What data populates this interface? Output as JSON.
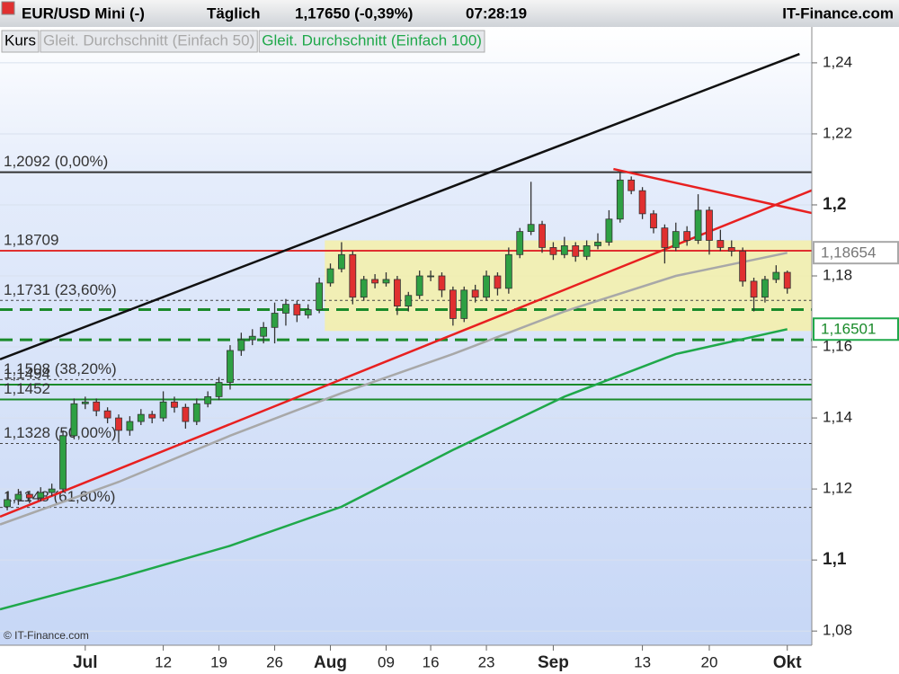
{
  "header": {
    "title": "EUR/USD Mini (-)",
    "interval": "Täglich",
    "price": "1,17650 (-0,39%)",
    "time": "07:28:19",
    "brand": "IT-Finance.com"
  },
  "chart_data": {
    "type": "candlestick",
    "up_color": "#2ea043",
    "down_color": "#e03030",
    "open": [
      1.115,
      1.117,
      1.1185,
      1.1175,
      1.119,
      1.12,
      1.135,
      1.144,
      1.1445,
      1.142,
      1.14,
      1.1365,
      1.139,
      1.141,
      1.14,
      1.1445,
      1.143,
      1.139,
      1.144,
      1.146,
      1.15,
      1.159,
      1.162,
      1.163,
      1.1655,
      1.1695,
      1.172,
      1.169,
      1.1705,
      1.178,
      1.182,
      1.186,
      1.174,
      1.179,
      1.178,
      1.179,
      1.1715,
      1.1745,
      1.18,
      1.18,
      1.176,
      1.168,
      1.176,
      1.174,
      1.18,
      1.1765,
      1.186,
      1.1925,
      1.1945,
      1.188,
      1.186,
      1.1885,
      1.1855,
      1.1885,
      1.1895,
      1.196,
      1.207,
      1.204,
      1.1975,
      1.1935,
      1.188,
      1.1925,
      1.19,
      1.1985,
      1.19,
      1.188,
      1.187,
      1.1785,
      1.174,
      1.179,
      1.181
    ],
    "high": [
      1.119,
      1.12,
      1.1195,
      1.1205,
      1.1215,
      1.1365,
      1.1455,
      1.146,
      1.1455,
      1.143,
      1.141,
      1.1405,
      1.1425,
      1.142,
      1.1475,
      1.146,
      1.144,
      1.1455,
      1.1475,
      1.1515,
      1.1605,
      1.164,
      1.165,
      1.167,
      1.1725,
      1.1735,
      1.173,
      1.172,
      1.1795,
      1.1835,
      1.1895,
      1.187,
      1.18,
      1.1805,
      1.181,
      1.18,
      1.1755,
      1.1815,
      1.1815,
      1.181,
      1.177,
      1.177,
      1.1775,
      1.1815,
      1.181,
      1.188,
      1.1935,
      1.2065,
      1.1955,
      1.1895,
      1.191,
      1.1895,
      1.19,
      1.192,
      1.1985,
      1.209,
      1.208,
      1.205,
      1.1985,
      1.1945,
      1.195,
      1.194,
      1.203,
      1.1995,
      1.193,
      1.19,
      1.188,
      1.1795,
      1.18,
      1.183,
      1.1815
    ],
    "low": [
      1.114,
      1.1155,
      1.116,
      1.1165,
      1.118,
      1.119,
      1.134,
      1.1425,
      1.1405,
      1.1385,
      1.133,
      1.135,
      1.138,
      1.1385,
      1.139,
      1.1415,
      1.137,
      1.138,
      1.143,
      1.145,
      1.148,
      1.1575,
      1.1605,
      1.161,
      1.161,
      1.166,
      1.167,
      1.168,
      1.1695,
      1.177,
      1.181,
      1.172,
      1.173,
      1.1765,
      1.177,
      1.169,
      1.17,
      1.1735,
      1.1785,
      1.174,
      1.166,
      1.167,
      1.1725,
      1.173,
      1.1745,
      1.175,
      1.185,
      1.1915,
      1.1865,
      1.1845,
      1.185,
      1.184,
      1.1845,
      1.1875,
      1.1885,
      1.195,
      1.203,
      1.196,
      1.192,
      1.1835,
      1.187,
      1.1885,
      1.189,
      1.186,
      1.187,
      1.1855,
      1.177,
      1.17,
      1.1725,
      1.178,
      1.175
    ],
    "close": [
      1.117,
      1.1185,
      1.1175,
      1.119,
      1.12,
      1.135,
      1.144,
      1.1445,
      1.142,
      1.14,
      1.1365,
      1.139,
      1.141,
      1.14,
      1.1445,
      1.143,
      1.139,
      1.144,
      1.146,
      1.15,
      1.159,
      1.162,
      1.163,
      1.1655,
      1.1695,
      1.172,
      1.169,
      1.1705,
      1.178,
      1.182,
      1.186,
      1.174,
      1.179,
      1.178,
      1.179,
      1.1715,
      1.1745,
      1.18,
      1.18,
      1.176,
      1.168,
      1.176,
      1.174,
      1.18,
      1.1765,
      1.186,
      1.1925,
      1.1945,
      1.188,
      1.186,
      1.1885,
      1.1855,
      1.1885,
      1.1895,
      1.196,
      1.207,
      1.204,
      1.1975,
      1.1935,
      1.188,
      1.1925,
      1.19,
      1.1985,
      1.19,
      1.188,
      1.187,
      1.1785,
      1.174,
      1.179,
      1.181,
      1.1765
    ],
    "xlim": [
      -0.65,
      72.2
    ],
    "ylim": [
      1.076,
      1.2501
    ],
    "grid": true,
    "xticks": [
      {
        "value": 7,
        "label": "Jul",
        "bold": true
      },
      {
        "value": 14,
        "label": "12"
      },
      {
        "value": 19,
        "label": "19"
      },
      {
        "value": 24,
        "label": "26"
      },
      {
        "value": 29,
        "label": "Aug",
        "bold": true
      },
      {
        "value": 34,
        "label": "09"
      },
      {
        "value": 38,
        "label": "16"
      },
      {
        "value": 43,
        "label": "23"
      },
      {
        "value": 49,
        "label": "Sep",
        "bold": true
      },
      {
        "value": 57,
        "label": "13"
      },
      {
        "value": 63,
        "label": "20"
      },
      {
        "value": 70,
        "label": "Okt",
        "bold": true
      }
    ],
    "yticks": [
      {
        "value": 1.08,
        "label": "1,08"
      },
      {
        "value": 1.1,
        "label": "1,1",
        "bold": true
      },
      {
        "value": 1.12,
        "label": "1,12"
      },
      {
        "value": 1.14,
        "label": "1,14"
      },
      {
        "value": 1.16,
        "label": "1,16"
      },
      {
        "value": 1.18,
        "label": "1,18"
      },
      {
        "value": 1.2,
        "label": "1,2",
        "bold": true
      },
      {
        "value": 1.22,
        "label": "1,22"
      },
      {
        "value": 1.24,
        "label": "1,24"
      }
    ],
    "series": [
      {
        "name": "Kurs",
        "color": "#000000"
      },
      {
        "name": "Gleit. Durchschnitt (Einfach 50)",
        "color": "#a8a8a8",
        "x": [
          -0.65,
          10,
          20,
          30,
          40,
          50,
          60,
          70
        ],
        "values": [
          1.11,
          1.122,
          1.135,
          1.147,
          1.158,
          1.17,
          1.18,
          1.1865
        ]
      },
      {
        "name": "Gleit. Durchschnitt (Einfach 100)",
        "color": "#1fa84a",
        "x": [
          -0.65,
          10,
          20,
          30,
          40,
          50,
          60,
          70
        ],
        "values": [
          1.0861,
          1.095,
          1.104,
          1.115,
          1.131,
          1.146,
          1.158,
          1.165
        ]
      }
    ],
    "price_tags": [
      {
        "value": 1.18654,
        "label": "1,18654",
        "color": "#a8a8a8"
      },
      {
        "value": 1.16501,
        "label": "1,16501",
        "color": "#1fa84a"
      }
    ],
    "zone": {
      "x": [
        28.5,
        72.2
      ],
      "values": [
        1.1645,
        1.19
      ],
      "color": "#f4f0a8"
    },
    "levels": [
      {
        "value": 1.2092,
        "label": "1,2092 (0,00%)",
        "color": "#333333",
        "style": "solid"
      },
      {
        "value": 1.18709,
        "label": "1,18709",
        "color": "#e03030",
        "style": "solid"
      },
      {
        "value": 1.1731,
        "label": "1,1731 (23,60%)",
        "color": "#444444",
        "style": "dotted"
      },
      {
        "value": 1.1705,
        "color": "#1a8a2a",
        "style": "dashed"
      },
      {
        "value": 1.162,
        "color": "#1a8a2a",
        "style": "dashed"
      },
      {
        "value": 1.1508,
        "label": "1,1508 (38,20%)",
        "color": "#444444",
        "style": "dotted"
      },
      {
        "value": 1.1494,
        "label": "1,1494",
        "color": "#1a8a2a",
        "style": "solid"
      },
      {
        "value": 1.1452,
        "label": "1,1452",
        "color": "#1a8a2a",
        "style": "solid"
      },
      {
        "value": 1.1328,
        "label": "1,1328 (50,00%)",
        "color": "#444444",
        "style": "dotted"
      },
      {
        "value": 1.1148,
        "label": "1,1148 (61,80%)",
        "color": "#444444",
        "style": "dotted"
      }
    ],
    "trendlines": [
      {
        "x": [
          -0.65,
          71.1
        ],
        "values": [
          1.1565,
          1.2425
        ],
        "color": "#111111"
      },
      {
        "x": [
          -0.65,
          72.2
        ],
        "values": [
          1.1122,
          1.2041
        ],
        "color": "#e82020"
      },
      {
        "x": [
          54.4,
          72.2
        ],
        "values": [
          1.2101,
          1.1977
        ],
        "color": "#e82020"
      }
    ],
    "watermark": "© IT-Finance.com"
  }
}
